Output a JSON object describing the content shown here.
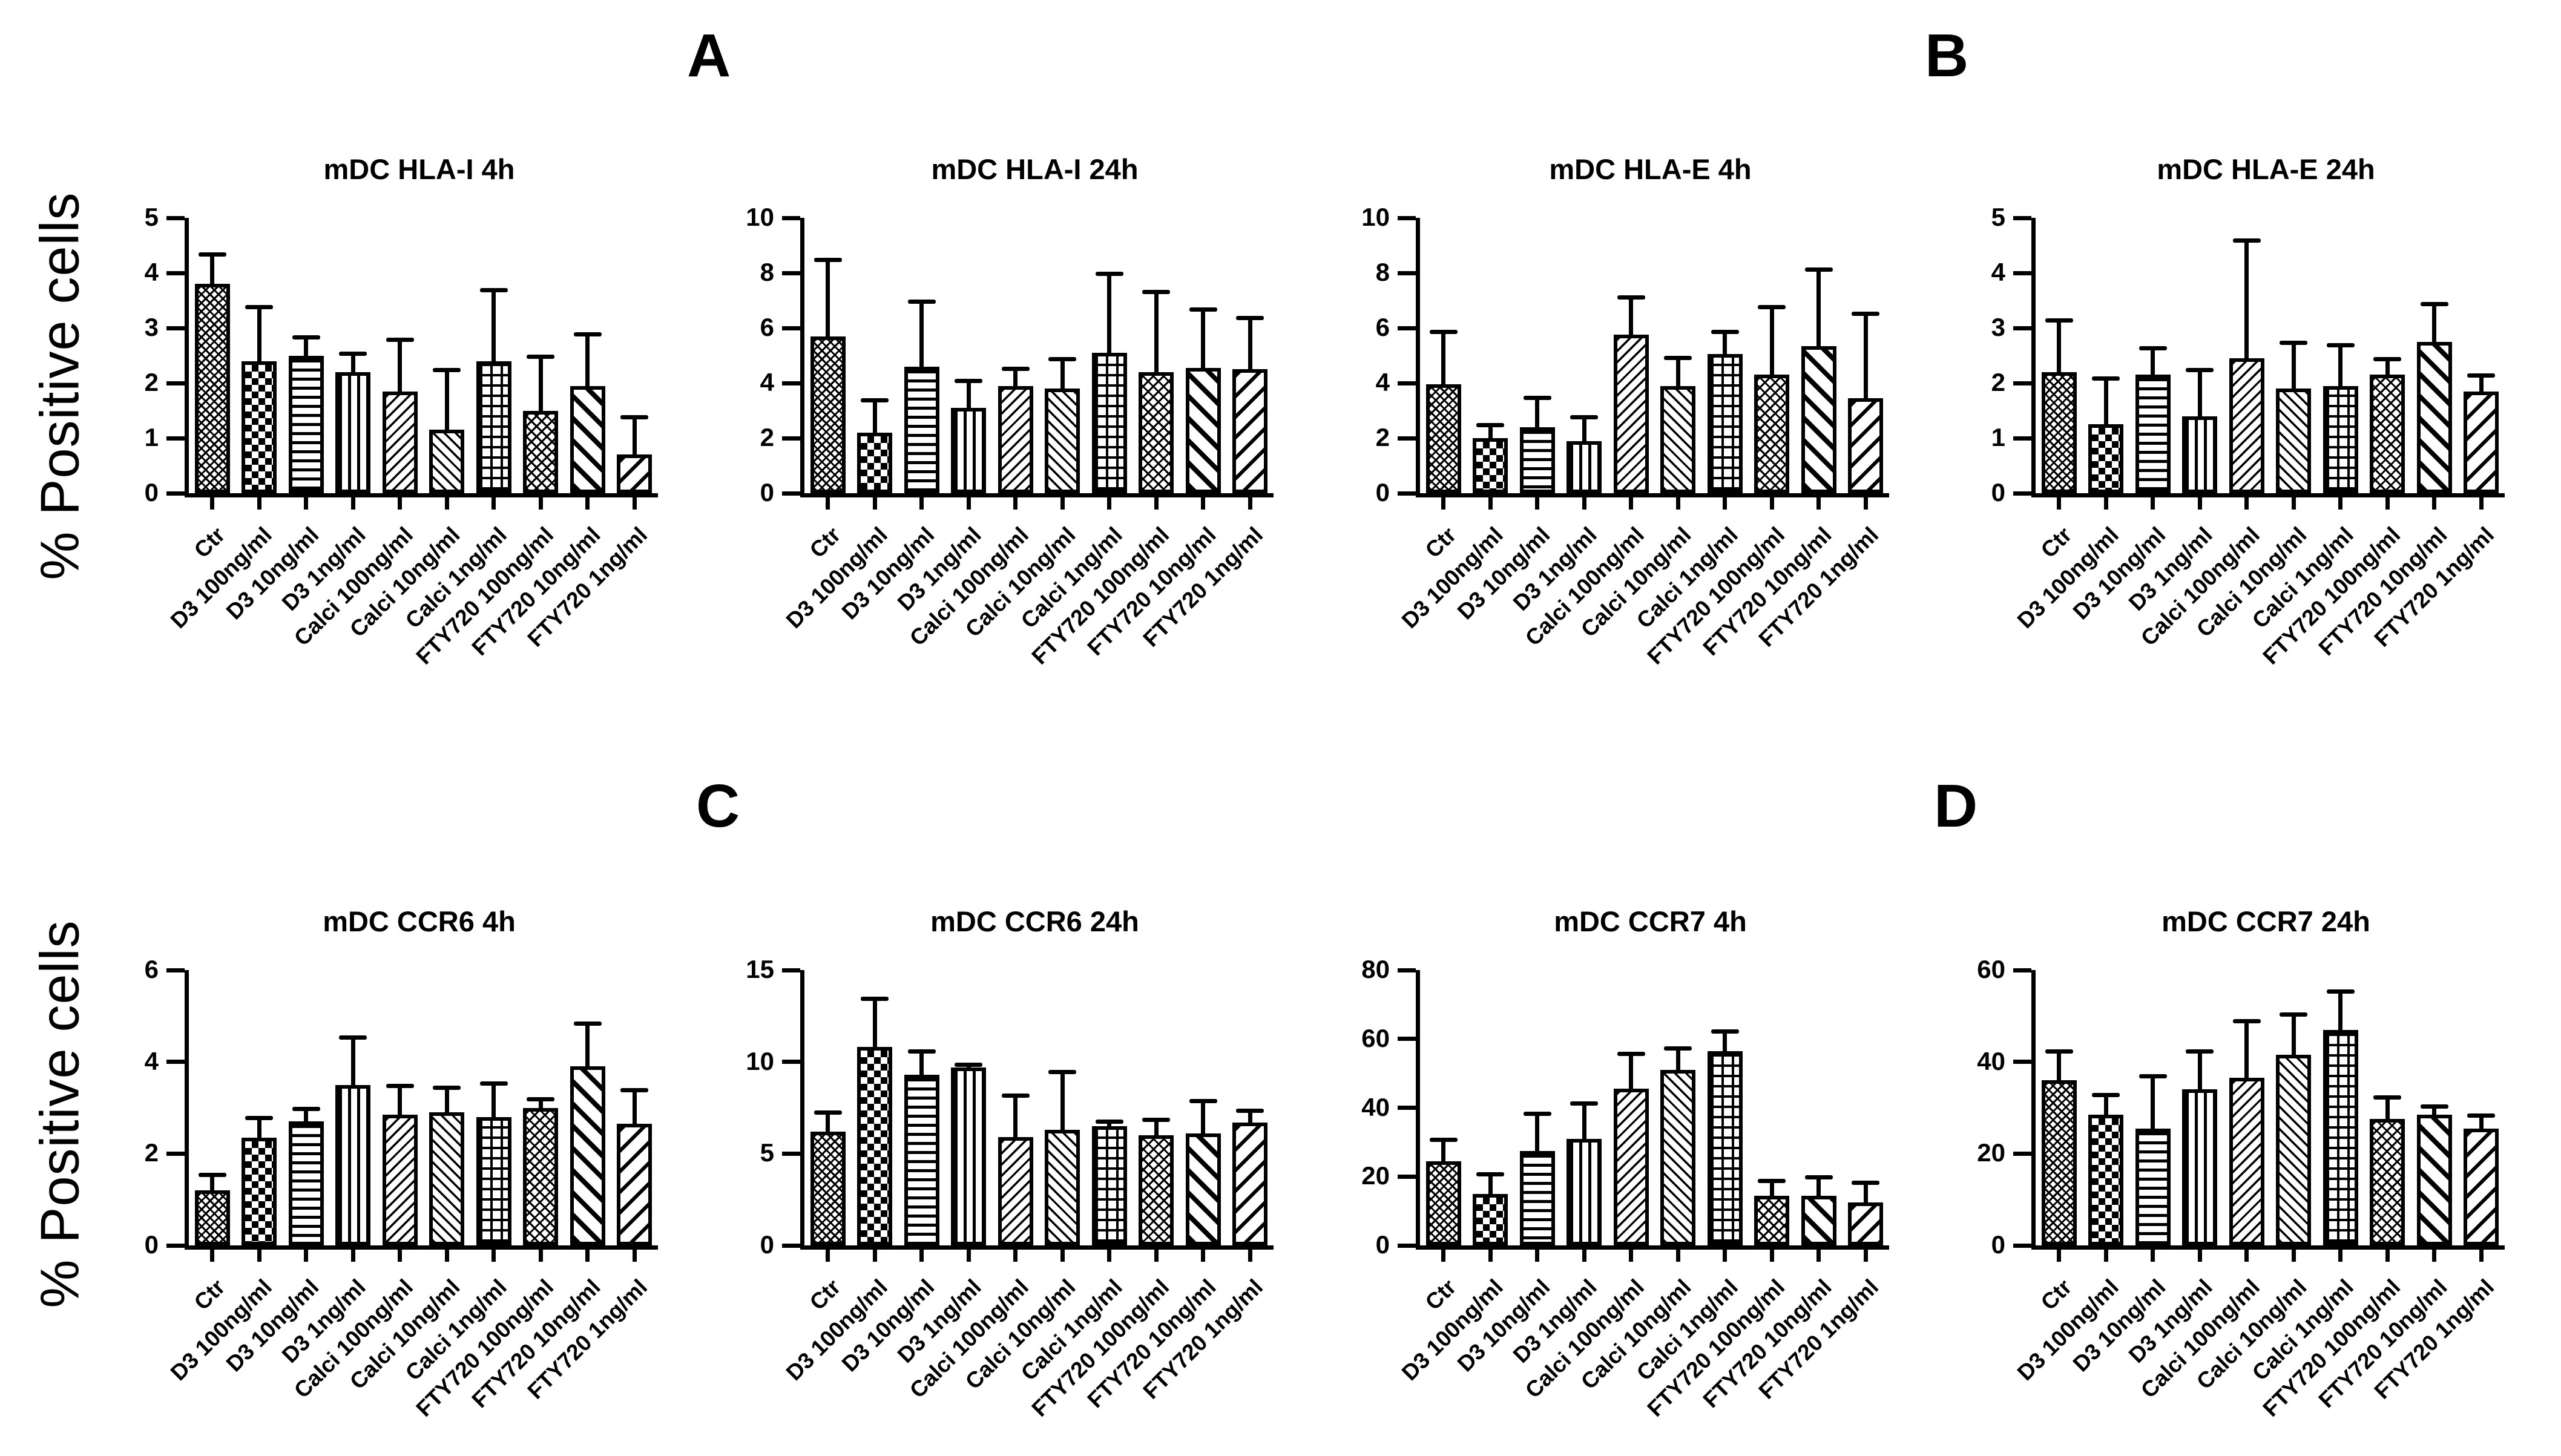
{
  "figure": {
    "panel_labels": [
      "A",
      "B",
      "C",
      "D"
    ],
    "y_axis_label": "% Positive cells",
    "ink_color": "#000000",
    "background_color": "#ffffff"
  },
  "chart_data": {
    "type": "bar",
    "error_bars": "upper-sd",
    "legend": "none",
    "grid": "off",
    "categories": [
      "Ctr",
      "D3 100ng/ml",
      "D3 10ng/ml",
      "D3 1ng/ml",
      "Calci 100ng/ml",
      "Calci 10ng/ml",
      "Calci 1ng/ml",
      "FTY720 100ng/ml",
      "FTY720 10ng/ml",
      "FTY720 1ng/ml"
    ],
    "bar_patterns": [
      "crosshatch-fine",
      "checkerboard",
      "horizontal-lines",
      "vertical-lines",
      "diagonal-up-thin",
      "diagonal-down-thin",
      "grid",
      "diamond-mesh",
      "diagonal-down-bold",
      "diagonal-up-wide"
    ],
    "charts": [
      {
        "panel": "A",
        "title": "mDC HLA-I 4h",
        "ylabel": "% Positive cells",
        "ylim": [
          0,
          5
        ],
        "yticks": [
          0,
          1,
          2,
          3,
          4,
          5
        ],
        "values": [
          3.8,
          2.4,
          2.5,
          2.2,
          1.85,
          1.15,
          2.4,
          1.5,
          1.95,
          0.7
        ],
        "error_top": [
          4.35,
          3.4,
          2.85,
          2.55,
          2.8,
          2.25,
          3.7,
          2.5,
          2.9,
          1.4
        ]
      },
      {
        "panel": "A",
        "title": "mDC HLA-I 24h",
        "ylabel": "% Positive cells",
        "ylim": [
          0,
          10
        ],
        "yticks": [
          0,
          2,
          4,
          6,
          8,
          10
        ],
        "values": [
          5.7,
          2.2,
          4.6,
          3.1,
          3.9,
          3.8,
          5.1,
          4.4,
          4.55,
          4.5
        ],
        "error_top": [
          8.5,
          3.4,
          7.0,
          4.1,
          4.55,
          4.9,
          8.0,
          7.35,
          6.7,
          6.4
        ]
      },
      {
        "panel": "B",
        "title": "mDC HLA-E 4h",
        "ylabel": "% Positive cells",
        "ylim": [
          0,
          10
        ],
        "yticks": [
          0,
          2,
          4,
          6,
          8,
          10
        ],
        "values": [
          3.95,
          2.0,
          2.4,
          1.9,
          5.75,
          3.9,
          5.05,
          4.3,
          5.35,
          3.45
        ],
        "error_top": [
          5.9,
          2.5,
          3.5,
          2.8,
          7.15,
          4.95,
          5.9,
          6.8,
          8.15,
          6.55
        ]
      },
      {
        "panel": "B",
        "title": "mDC HLA-E 24h",
        "ylabel": "% Positive cells",
        "ylim": [
          0,
          5
        ],
        "yticks": [
          0,
          1,
          2,
          3,
          4,
          5
        ],
        "values": [
          2.2,
          1.25,
          2.15,
          1.4,
          2.45,
          1.9,
          1.95,
          2.15,
          2.75,
          1.85
        ],
        "error_top": [
          3.15,
          2.1,
          2.65,
          2.25,
          4.6,
          2.75,
          2.7,
          2.45,
          3.45,
          2.15
        ]
      },
      {
        "panel": "C",
        "title": "mDC CCR6 4h",
        "ylabel": "% Positive cells",
        "ylim": [
          0,
          6
        ],
        "yticks": [
          0,
          2,
          4,
          6
        ],
        "values": [
          1.2,
          2.35,
          2.7,
          3.5,
          2.85,
          2.9,
          2.8,
          3.0,
          3.9,
          2.65
        ],
        "error_top": [
          1.55,
          2.8,
          3.0,
          4.55,
          3.5,
          3.45,
          3.55,
          3.2,
          4.85,
          3.4
        ]
      },
      {
        "panel": "C",
        "title": "mDC CCR6 24h",
        "ylabel": "% Positive cells",
        "ylim": [
          0,
          15
        ],
        "yticks": [
          0,
          5,
          10,
          15
        ],
        "values": [
          6.2,
          10.8,
          9.3,
          9.7,
          5.9,
          6.3,
          6.5,
          6.0,
          6.1,
          6.7
        ],
        "error_top": [
          7.3,
          13.5,
          10.6,
          9.9,
          8.2,
          9.5,
          6.8,
          6.9,
          7.9,
          7.4
        ]
      },
      {
        "panel": "D",
        "title": "mDC CCR7 4h",
        "ylabel": "% Positive cells",
        "ylim": [
          0,
          80
        ],
        "yticks": [
          0,
          20,
          40,
          60,
          80
        ],
        "values": [
          24.5,
          15,
          27.5,
          31,
          45.5,
          51,
          56.5,
          14.5,
          14.5,
          12.5
        ],
        "error_top": [
          31,
          21,
          38.5,
          41.5,
          56,
          57.5,
          62.5,
          19,
          20,
          18.5
        ]
      },
      {
        "panel": "D",
        "title": "mDC CCR7 24h",
        "ylabel": "% Positive cells",
        "ylim": [
          0,
          60
        ],
        "yticks": [
          0,
          20,
          40,
          60
        ],
        "values": [
          36,
          28.5,
          25.5,
          34,
          36.5,
          41.5,
          47,
          27.5,
          28.5,
          25.5
        ],
        "error_top": [
          42.5,
          33,
          37,
          42.5,
          49,
          50.5,
          55.5,
          32.5,
          30.5,
          28.5
        ]
      }
    ]
  }
}
